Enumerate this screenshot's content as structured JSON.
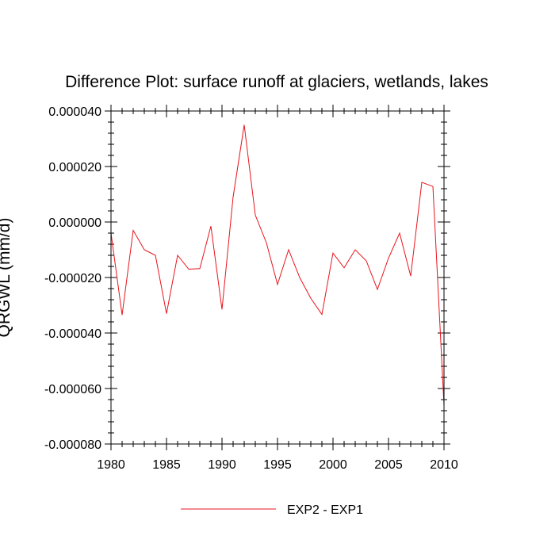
{
  "chart_data": {
    "type": "line",
    "title": "Difference Plot: surface runoff at glaciers, wetlands, lakes",
    "xlabel": "",
    "ylabel": "QRGWL  (mm/d)",
    "xlim": [
      1980,
      2010
    ],
    "ylim": [
      -8e-05,
      4e-05
    ],
    "x_ticks": [
      1980,
      1985,
      1990,
      1995,
      2000,
      2005,
      2010
    ],
    "x_tick_labels": [
      "1980",
      "1985",
      "1990",
      "1995",
      "2000",
      "2005",
      "2010"
    ],
    "y_ticks": [
      4e-05,
      2e-05,
      0.0,
      -2e-05,
      -4e-05,
      -6e-05,
      -8e-05
    ],
    "y_tick_labels": [
      "0.000040",
      "0.000020",
      "0.000000",
      "-0.000020",
      "-0.000040",
      "-0.000060",
      "-0.000080"
    ],
    "grid": false,
    "legend_position": "bottom-center",
    "series": [
      {
        "name": "EXP2 - EXP1",
        "color": "#e8141c",
        "x": [
          1980,
          1981,
          1982,
          1983,
          1984,
          1985,
          1986,
          1987,
          1988,
          1989,
          1990,
          1991,
          1992,
          1993,
          1994,
          1995,
          1996,
          1997,
          1998,
          1999,
          2000,
          2001,
          2002,
          2003,
          2004,
          2005,
          2006,
          2007,
          2008,
          2009,
          2010
        ],
        "values": [
          -4e-06,
          -3.35e-05,
          -3e-06,
          -1e-05,
          -1.2e-05,
          -3.3e-05,
          -1.2e-05,
          -1.7e-05,
          -1.68e-05,
          -1.5e-06,
          -3.15e-05,
          9e-06,
          3.5e-05,
          2.5e-06,
          -7.5e-06,
          -2.25e-05,
          -1e-05,
          -2e-05,
          -2.75e-05,
          -3.33e-05,
          -1.12e-05,
          -1.65e-05,
          -1e-05,
          -1.4e-05,
          -2.43e-05,
          -1.3e-05,
          -4e-06,
          -1.95e-05,
          1.43e-05,
          1.28e-05,
          -6.6e-05
        ]
      }
    ]
  }
}
